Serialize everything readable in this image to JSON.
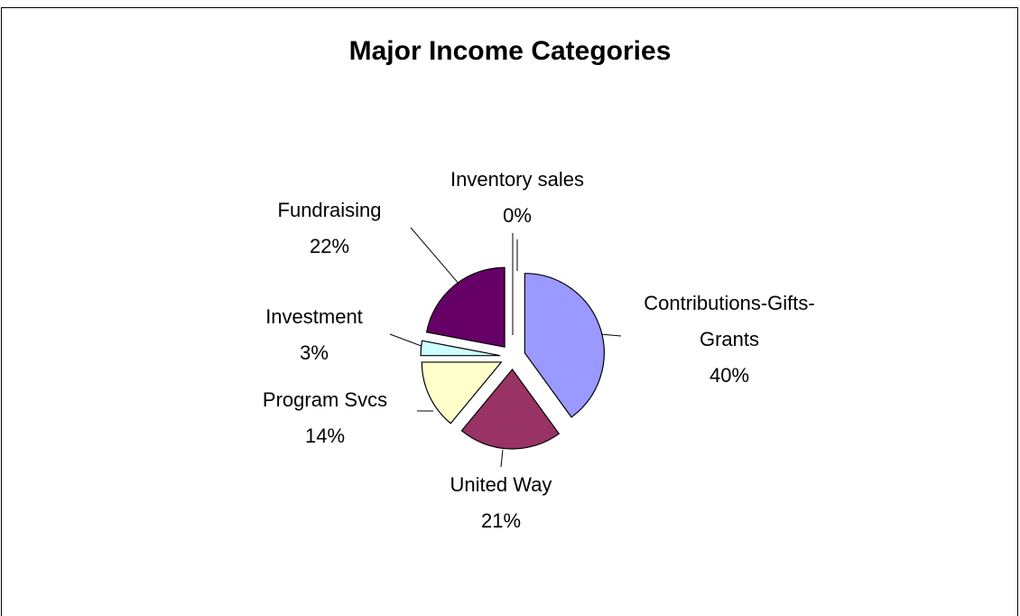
{
  "chart_data": {
    "type": "pie",
    "title": "Major Income Categories",
    "categories": [
      "Contributions-Gifts-Grants",
      "United Way",
      "Program Svcs",
      "Investment",
      "Fundraising",
      "Inventory sales"
    ],
    "values": [
      40,
      21,
      14,
      3,
      22,
      0
    ],
    "value_labels": [
      "40%",
      "21%",
      "14%",
      "3%",
      "22%",
      "0%"
    ],
    "colors": [
      "#9999ff",
      "#993366",
      "#ffffcc",
      "#ccffff",
      "#660066",
      "#ff8080"
    ]
  }
}
